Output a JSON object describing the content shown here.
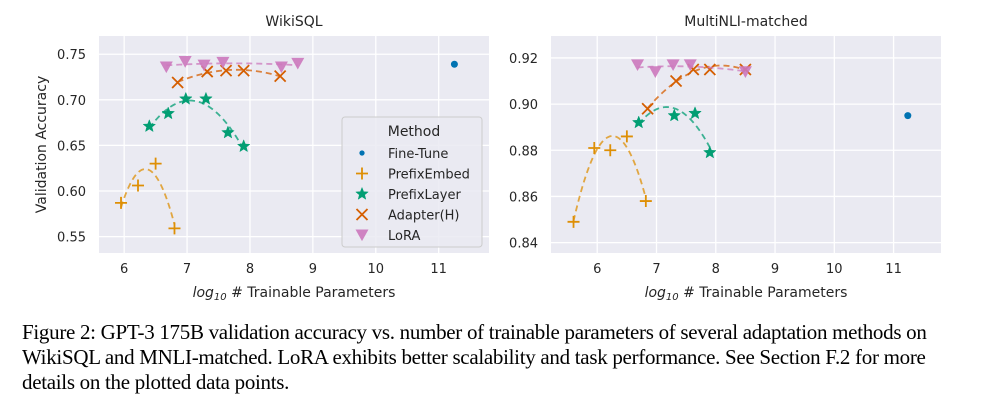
{
  "figure": {
    "caption": "Figure 2: GPT-3 175B validation accuracy vs. number of trainable parameters of several adaptation methods on WikiSQL and MNLI-matched. LoRA exhibits better scalability and task performance. See Section F.2 for more details on the plotted data points."
  },
  "colors": {
    "Fine-Tune": "#0173b2",
    "PrefixEmbed": "#de8f05",
    "PrefixLayer": "#029e73",
    "Adapter(H)": "#d55e00",
    "LoRA": "#cc78bc",
    "background": "#eaeaf2"
  },
  "legend": {
    "title": "Method",
    "entries": [
      "Fine-Tune",
      "PrefixEmbed",
      "PrefixLayer",
      "Adapter(H)",
      "LoRA"
    ],
    "markers": {
      "Fine-Tune": "dot",
      "PrefixEmbed": "plus",
      "PrefixLayer": "star",
      "Adapter(H)": "x",
      "LoRA": "triangle-down"
    }
  },
  "chart_data": [
    {
      "type": "scatter",
      "title": "WikiSQL",
      "xlabel_prefix": "log",
      "xlabel_sub": "10",
      "xlabel_rest": " # Trainable Parameters",
      "ylabel": "Validation Accuracy",
      "xlim": [
        5.6,
        11.8
      ],
      "ylim": [
        0.532,
        0.77
      ],
      "xticks": [
        6,
        7,
        8,
        9,
        10,
        11
      ],
      "yticks": [
        0.55,
        0.6,
        0.65,
        0.7,
        0.75
      ],
      "ytick_labels": [
        "0.55",
        "0.60",
        "0.65",
        "0.70",
        "0.75"
      ],
      "grid": true,
      "legend": "center-right",
      "series": [
        {
          "name": "Fine-Tune",
          "x": [
            11.25
          ],
          "y": [
            0.739
          ],
          "fit": false
        },
        {
          "name": "PrefixEmbed",
          "x": [
            5.95,
            6.22,
            6.5,
            6.8
          ],
          "y": [
            0.587,
            0.606,
            0.63,
            0.559
          ],
          "fit": true
        },
        {
          "name": "PrefixLayer",
          "x": [
            6.4,
            6.7,
            6.98,
            7.3,
            7.65,
            7.9
          ],
          "y": [
            0.671,
            0.685,
            0.701,
            0.701,
            0.664,
            0.649
          ],
          "fit": true
        },
        {
          "name": "Adapter(H)",
          "x": [
            6.85,
            7.32,
            7.62,
            7.9,
            8.48
          ],
          "y": [
            0.719,
            0.731,
            0.732,
            0.732,
            0.726
          ],
          "fit": true
        },
        {
          "name": "LoRA",
          "x": [
            6.67,
            6.97,
            7.27,
            7.57,
            8.5,
            8.76
          ],
          "y": [
            0.736,
            0.742,
            0.738,
            0.741,
            0.736,
            0.74
          ],
          "fit": true
        }
      ]
    },
    {
      "type": "scatter",
      "title": "MultiNLI-matched",
      "xlabel_prefix": "log",
      "xlabel_sub": "10",
      "xlabel_rest": " # Trainable Parameters",
      "ylabel": "",
      "xlim": [
        5.22,
        11.8
      ],
      "ylim": [
        0.8355,
        0.9295
      ],
      "xticks": [
        6,
        7,
        8,
        9,
        10,
        11
      ],
      "yticks": [
        0.84,
        0.86,
        0.88,
        0.9,
        0.92
      ],
      "ytick_labels": [
        "0.84",
        "0.86",
        "0.88",
        "0.90",
        "0.92"
      ],
      "grid": true,
      "legend": "none",
      "series": [
        {
          "name": "Fine-Tune",
          "x": [
            11.24
          ],
          "y": [
            0.895
          ],
          "fit": false
        },
        {
          "name": "PrefixEmbed",
          "x": [
            5.6,
            5.95,
            6.22,
            6.5,
            6.82
          ],
          "y": [
            0.849,
            0.881,
            0.88,
            0.886,
            0.858
          ],
          "fit": true
        },
        {
          "name": "PrefixLayer",
          "x": [
            6.7,
            7.3,
            7.65,
            7.9
          ],
          "y": [
            0.892,
            0.895,
            0.896,
            0.879
          ],
          "fit": true
        },
        {
          "name": "Adapter(H)",
          "x": [
            6.85,
            7.33,
            7.62,
            7.9,
            8.5
          ],
          "y": [
            0.898,
            0.91,
            0.915,
            0.915,
            0.915
          ],
          "fit": true
        },
        {
          "name": "LoRA",
          "x": [
            6.68,
            6.98,
            7.28,
            7.57,
            8.5
          ],
          "y": [
            0.917,
            0.914,
            0.917,
            0.917,
            0.914
          ],
          "fit": true
        }
      ]
    }
  ]
}
